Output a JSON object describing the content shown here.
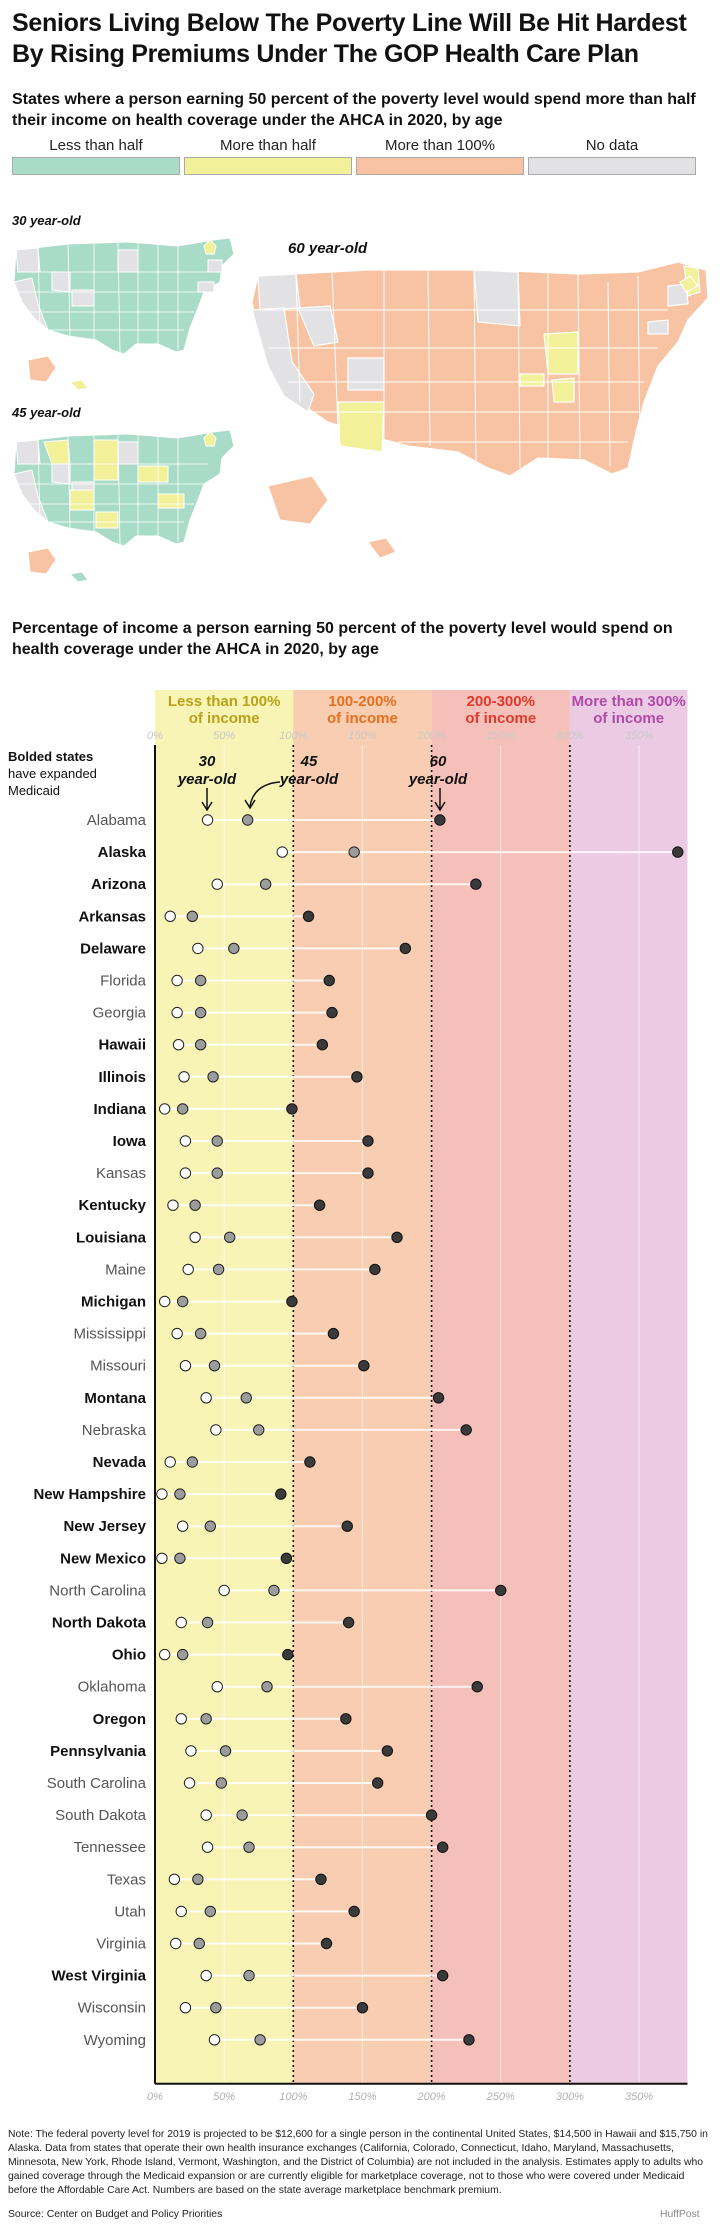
{
  "headline": "Seniors Living Below The Poverty Line Will Be Hit Hardest By Rising Premiums Under The GOP Health Care Plan",
  "map_section": {
    "subtitle": "States where a person earning 50 percent of the poverty level would spend more than half their income on health coverage under the AHCA in 2020, by age",
    "legend": [
      {
        "label": "Less than half",
        "color": "#a8dcc8"
      },
      {
        "label": "More than half",
        "color": "#f3f09a"
      },
      {
        "label": "More than 100%",
        "color": "#f7c3a2"
      },
      {
        "label": "No data",
        "color": "#e2e2e4"
      }
    ],
    "map_labels": {
      "age30": "30 year-old",
      "age45": "45 year-old",
      "age60": "60 year-old"
    }
  },
  "chart_section": {
    "subtitle": "Percentage of income a person earning 50 percent of the poverty level would spend on health coverage under the AHCA in 2020, by age",
    "bands": [
      {
        "label": "Less than 100% of income",
        "line1": "Less than 100%",
        "line2": "of income",
        "from": 0,
        "to": 100,
        "fill": "#f7f4b6",
        "text_color": "#b9a218"
      },
      {
        "label": "100-200% of income",
        "line1": "100-200%",
        "line2": "of income",
        "from": 100,
        "to": 200,
        "fill": "#f8cdb1",
        "text_color": "#e5701e"
      },
      {
        "label": "200-300% of income",
        "line1": "200-300%",
        "line2": "of income",
        "from": 200,
        "to": 300,
        "fill": "#f6c0ba",
        "text_color": "#e03a2c"
      },
      {
        "label": "More than 300% of income",
        "line1": "More than 300%",
        "line2": "of income",
        "from": 300,
        "to": 385,
        "fill": "#ebcbe3",
        "text_color": "#b04aa8"
      }
    ],
    "bolded_note": [
      "Bolded states",
      "have expanded",
      "Medicaid"
    ],
    "age_labels": {
      "age30": [
        "30",
        "year-old"
      ],
      "age45": [
        "45",
        "year-old"
      ],
      "age60": [
        "60",
        "year-old"
      ]
    }
  },
  "chart_data": {
    "type": "scatter",
    "x_unit": "percent of income",
    "xlim": [
      0,
      385
    ],
    "x_ticks": [
      "0%",
      "50%",
      "100%",
      "150%",
      "200%",
      "250%",
      "300%",
      "350%"
    ],
    "x_tick_values": [
      0,
      50,
      100,
      150,
      200,
      250,
      300,
      350
    ],
    "series": [
      {
        "name": "30 year-old",
        "color": "#ffffff"
      },
      {
        "name": "45 year-old",
        "color": "#9c9c9c"
      },
      {
        "name": "60 year-old",
        "color": "#3a3a3a"
      }
    ],
    "rows": [
      {
        "state": "Alabama",
        "expanded": false,
        "v30": 38,
        "v45": 67,
        "v60": 206
      },
      {
        "state": "Alaska",
        "expanded": true,
        "v30": 92,
        "v45": 144,
        "v60": 378
      },
      {
        "state": "Arizona",
        "expanded": true,
        "v30": 45,
        "v45": 80,
        "v60": 232
      },
      {
        "state": "Arkansas",
        "expanded": true,
        "v30": 11,
        "v45": 27,
        "v60": 111
      },
      {
        "state": "Delaware",
        "expanded": true,
        "v30": 31,
        "v45": 57,
        "v60": 181
      },
      {
        "state": "Florida",
        "expanded": false,
        "v30": 16,
        "v45": 33,
        "v60": 126
      },
      {
        "state": "Georgia",
        "expanded": false,
        "v30": 16,
        "v45": 33,
        "v60": 128
      },
      {
        "state": "Hawaii",
        "expanded": true,
        "v30": 17,
        "v45": 33,
        "v60": 121
      },
      {
        "state": "Illinois",
        "expanded": true,
        "v30": 21,
        "v45": 42,
        "v60": 146
      },
      {
        "state": "Indiana",
        "expanded": true,
        "v30": 7,
        "v45": 20,
        "v60": 99
      },
      {
        "state": "Iowa",
        "expanded": true,
        "v30": 22,
        "v45": 45,
        "v60": 154
      },
      {
        "state": "Kansas",
        "expanded": false,
        "v30": 22,
        "v45": 45,
        "v60": 154
      },
      {
        "state": "Kentucky",
        "expanded": true,
        "v30": 13,
        "v45": 29,
        "v60": 119
      },
      {
        "state": "Louisiana",
        "expanded": true,
        "v30": 29,
        "v45": 54,
        "v60": 175
      },
      {
        "state": "Maine",
        "expanded": false,
        "v30": 24,
        "v45": 46,
        "v60": 159
      },
      {
        "state": "Michigan",
        "expanded": true,
        "v30": 7,
        "v45": 20,
        "v60": 99
      },
      {
        "state": "Mississippi",
        "expanded": false,
        "v30": 16,
        "v45": 33,
        "v60": 129
      },
      {
        "state": "Missouri",
        "expanded": false,
        "v30": 22,
        "v45": 43,
        "v60": 151
      },
      {
        "state": "Montana",
        "expanded": true,
        "v30": 37,
        "v45": 66,
        "v60": 205
      },
      {
        "state": "Nebraska",
        "expanded": false,
        "v30": 44,
        "v45": 75,
        "v60": 225
      },
      {
        "state": "Nevada",
        "expanded": true,
        "v30": 11,
        "v45": 27,
        "v60": 112
      },
      {
        "state": "New Hampshire",
        "expanded": true,
        "v30": 5,
        "v45": 18,
        "v60": 91
      },
      {
        "state": "New Jersey",
        "expanded": true,
        "v30": 20,
        "v45": 40,
        "v60": 139
      },
      {
        "state": "New Mexico",
        "expanded": true,
        "v30": 5,
        "v45": 18,
        "v60": 95
      },
      {
        "state": "North Carolina",
        "expanded": false,
        "v30": 50,
        "v45": 86,
        "v60": 250
      },
      {
        "state": "North Dakota",
        "expanded": true,
        "v30": 19,
        "v45": 38,
        "v60": 140
      },
      {
        "state": "Ohio",
        "expanded": true,
        "v30": 7,
        "v45": 20,
        "v60": 96
      },
      {
        "state": "Oklahoma",
        "expanded": false,
        "v30": 45,
        "v45": 81,
        "v60": 233
      },
      {
        "state": "Oregon",
        "expanded": true,
        "v30": 19,
        "v45": 37,
        "v60": 138
      },
      {
        "state": "Pennsylvania",
        "expanded": true,
        "v30": 26,
        "v45": 51,
        "v60": 168
      },
      {
        "state": "South Carolina",
        "expanded": false,
        "v30": 25,
        "v45": 48,
        "v60": 161
      },
      {
        "state": "South Dakota",
        "expanded": false,
        "v30": 37,
        "v45": 63,
        "v60": 200
      },
      {
        "state": "Tennessee",
        "expanded": false,
        "v30": 38,
        "v45": 68,
        "v60": 208
      },
      {
        "state": "Texas",
        "expanded": false,
        "v30": 14,
        "v45": 31,
        "v60": 120
      },
      {
        "state": "Utah",
        "expanded": false,
        "v30": 19,
        "v45": 40,
        "v60": 144
      },
      {
        "state": "Virginia",
        "expanded": false,
        "v30": 15,
        "v45": 32,
        "v60": 124
      },
      {
        "state": "West Virginia",
        "expanded": true,
        "v30": 37,
        "v45": 68,
        "v60": 208
      },
      {
        "state": "Wisconsin",
        "expanded": false,
        "v30": 22,
        "v45": 44,
        "v60": 150
      },
      {
        "state": "Wyoming",
        "expanded": false,
        "v30": 43,
        "v45": 76,
        "v60": 227
      }
    ]
  },
  "note": "Note: The federal poverty level for 2019 is projected to be $12,600 for a single person in the continental United States, $14,500 in Hawaii and $15,750 in Alaska. Data from states that operate their own health insurance exchanges (California, Colorado, Connecticut, Idaho, Maryland, Massachusetts, Minnesota, New York, Rhode Island, Vermont, Washington, and the District of Columbia) are not included in the analysis. Estimates apply to adults who gained coverage through the Medicaid expansion or are currently eligible for marketplace coverage, not to those who were covered under Medicaid before the Affordable Care Act. Numbers are based on the state average marketplace benchmark premium.",
  "source": "Source: Center on Budget and Policy Priorities",
  "credit": "HuffPost"
}
